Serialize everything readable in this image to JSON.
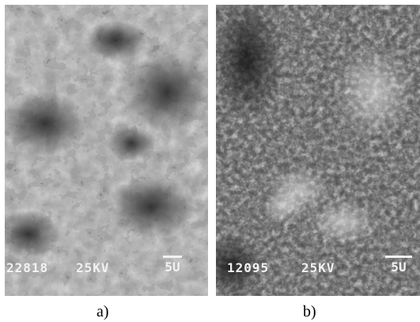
{
  "panels": [
    {
      "caption": "a)",
      "sample_id": "22818",
      "voltage": "25KV",
      "scale_label": "5U",
      "tone": "#b5b5b5"
    },
    {
      "caption": "b)",
      "sample_id": "12095",
      "voltage": "25KV",
      "scale_label": "5U",
      "tone": "#d8d8d8"
    }
  ]
}
